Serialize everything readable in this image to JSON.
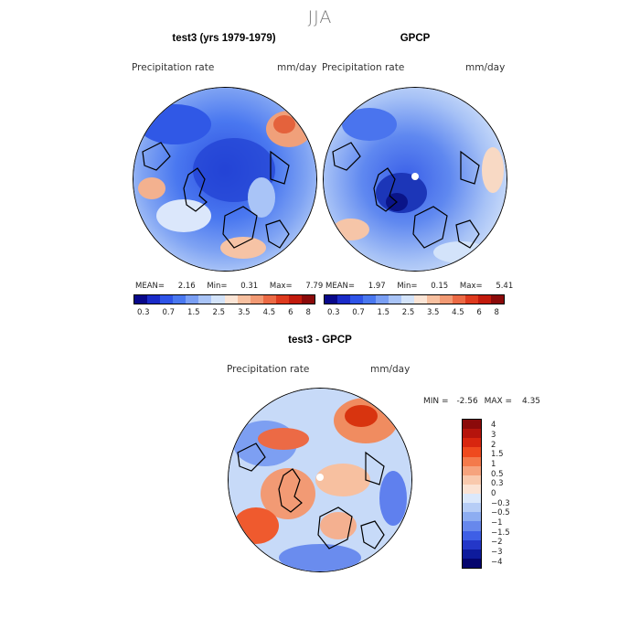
{
  "figure": {
    "title": "JJA"
  },
  "panel1": {
    "title": "test3 (yrs 1979-1979)",
    "var_label": "Precipitation rate",
    "units": "mm/day",
    "stats": {
      "mean_label": "MEAN=",
      "mean": "2.16",
      "min_label": "Min=",
      "min": "0.31",
      "max_label": "Max=",
      "max": "7.79"
    }
  },
  "panel2": {
    "title": "GPCP",
    "var_label": "Precipitation rate",
    "units": "mm/day",
    "stats": {
      "mean_label": "MEAN=",
      "mean": "1.97",
      "min_label": "Min=",
      "min": "0.15",
      "max_label": "Max=",
      "max": "5.41"
    }
  },
  "colorbar_top": {
    "labels": [
      "0.3",
      "0.7",
      "1.5",
      "2.5",
      "3.5",
      "4.5",
      "6",
      "8"
    ],
    "colors": [
      "#08088a",
      "#1a2bc8",
      "#2f54e8",
      "#4a78f0",
      "#7a9ff4",
      "#a9c4f7",
      "#d3e3fa",
      "#fbe5d6",
      "#f7c0a0",
      "#f29a74",
      "#ec6a45",
      "#de3a1e",
      "#c21b0d",
      "#8b0a0a"
    ]
  },
  "panel3": {
    "title": "test3 - GPCP",
    "var_label": "Precipitation rate",
    "units": "mm/day",
    "stats": {
      "min_label": "MIN =",
      "min": "-2.56",
      "max_label": "MAX =",
      "max": "4.35"
    }
  },
  "colorbar_diff": {
    "labels": [
      "4",
      "3",
      "2",
      "1.5",
      "1",
      "0.5",
      "0.3",
      "0",
      "−0.3",
      "−0.5",
      "−1",
      "−1.5",
      "−2",
      "−3",
      "−4"
    ],
    "colors": [
      "#8b0a0a",
      "#b5140c",
      "#d8260f",
      "#ef4a1e",
      "#f47a4b",
      "#f6a37d",
      "#f9c9ad",
      "#fbe3d4",
      "#dbe8fb",
      "#b6cdf6",
      "#8dadf1",
      "#6788ec",
      "#3e5fe6",
      "#2437c8",
      "#0e1b9c",
      "#05056e"
    ]
  }
}
